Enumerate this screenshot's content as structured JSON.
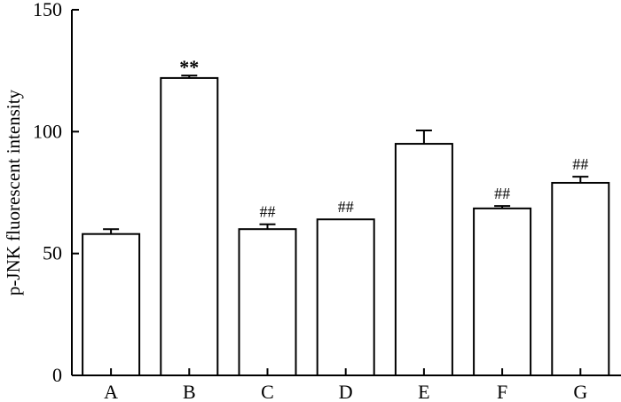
{
  "chart_data": {
    "type": "bar",
    "categories": [
      "A",
      "B",
      "C",
      "D",
      "E",
      "F",
      "G"
    ],
    "values": [
      58,
      122,
      60,
      64,
      95,
      68.5,
      79
    ],
    "errors": [
      2,
      1,
      2,
      0,
      5.5,
      1,
      2.5
    ],
    "annotations": [
      "",
      "**",
      "##",
      "##",
      "",
      "##",
      "##"
    ],
    "ylabel": "p-JNK fluorescent intensity",
    "xlabel": "",
    "ylim": [
      0,
      150
    ],
    "yticks": [
      0,
      50,
      100,
      150
    ],
    "grid": false,
    "legend": "none",
    "bar_fill": "#ffffff",
    "bar_stroke": "#000000"
  }
}
